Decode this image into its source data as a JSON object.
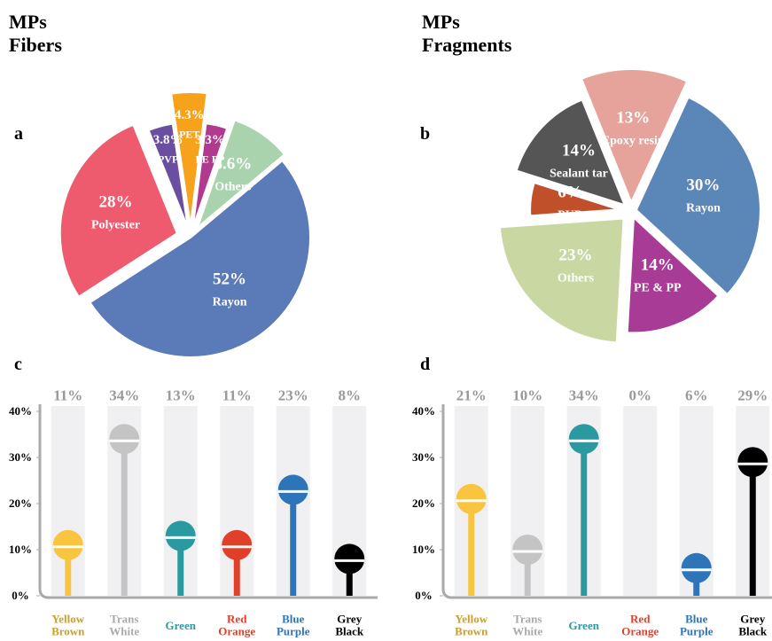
{
  "chart_data": [
    {
      "type": "pie",
      "panel": "a",
      "title": "MPs Fibers",
      "categories": [
        "PVP",
        "PET",
        "PE PP",
        "Others",
        "Rayon",
        "Polyester"
      ],
      "values": [
        3.8,
        4.3,
        3.3,
        8.6,
        52,
        28
      ],
      "value_labels": [
        "3.8%",
        "4.3%",
        "3.3%",
        "8.6%",
        "52%",
        "28%"
      ],
      "colors": [
        "#6a4fa0",
        "#f7a21b",
        "#b03a8e",
        "#a9d3ad",
        "#5b7bb8",
        "#ee5a6e"
      ]
    },
    {
      "type": "pie",
      "panel": "b",
      "title": "MPs Fragments",
      "categories": [
        "Epoxy resin",
        "Rayon",
        "PE & PP",
        "Others",
        "PUR",
        "Sealant tar"
      ],
      "values": [
        13,
        30,
        14,
        23,
        6,
        14
      ],
      "value_labels": [
        "13%",
        "30%",
        "14%",
        "23%",
        "6%",
        "14%"
      ],
      "colors": [
        "#e5a39b",
        "#5b86b8",
        "#a83b96",
        "#c9d7a2",
        "#c0502a",
        "#555555"
      ]
    },
    {
      "type": "lollipop",
      "panel": "c",
      "categories": [
        "Yellow Brown",
        "Trans White",
        "Green",
        "Red Orange",
        "Blue Purple",
        "Grey Black"
      ],
      "values": [
        11,
        34,
        13,
        11,
        23,
        8
      ],
      "value_labels": [
        "11%",
        "34%",
        "13%",
        "11%",
        "23%",
        "8%"
      ],
      "colors": [
        "#f9c440",
        "#c4c4c4",
        "#2a9aa0",
        "#e0402a",
        "#2e74b8",
        "#000000"
      ],
      "ylim": [
        0,
        40
      ],
      "yticks": [
        {
          "value": 0,
          "label": "0%"
        },
        {
          "value": 10,
          "label": "10%"
        },
        {
          "value": 20,
          "label": "20%"
        },
        {
          "value": 30,
          "label": "30%"
        },
        {
          "value": 40,
          "label": "40%"
        }
      ]
    },
    {
      "type": "lollipop",
      "panel": "d",
      "categories": [
        "Yellow Brown",
        "Trans White",
        "Green",
        "Red Orange",
        "Blue Purple",
        "Grey Black"
      ],
      "values": [
        21,
        10,
        34,
        0,
        6,
        29
      ],
      "value_labels": [
        "21%",
        "10%",
        "34%",
        "0%",
        "6%",
        "29%"
      ],
      "colors": [
        "#f9c440",
        "#c4c4c4",
        "#2a9aa0",
        "#e0402a",
        "#2e74b8",
        "#000000"
      ],
      "ylim": [
        0,
        40
      ],
      "yticks": [
        {
          "value": 0,
          "label": "0%"
        },
        {
          "value": 10,
          "label": "10%"
        },
        {
          "value": 20,
          "label": "20%"
        },
        {
          "value": 30,
          "label": "30%"
        },
        {
          "value": 40,
          "label": "40%"
        }
      ]
    }
  ]
}
